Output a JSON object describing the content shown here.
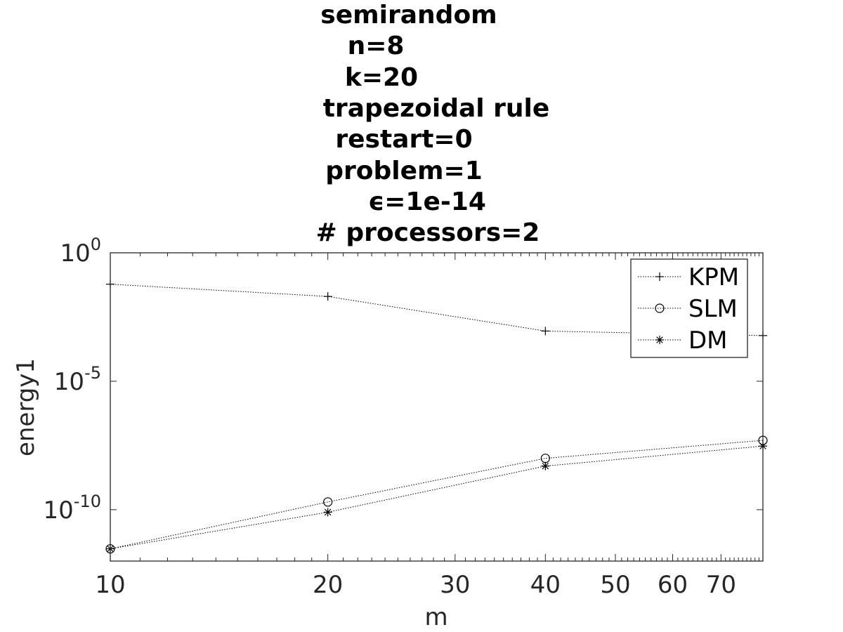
{
  "title_lines": [
    "semirandom",
    "n=8",
    "k=20",
    "trapezoidal rule",
    "restart=0",
    "problem=1",
    "ϵ=1e-14",
    "# processors=2"
  ],
  "chart_data": {
    "type": "line",
    "title": "semirandom n=8 k=20 trapezoidal rule restart=0 problem=1 ϵ=1e-14 # processors=2",
    "xlabel": "m",
    "ylabel": "energy1",
    "xscale": "log",
    "yscale": "log",
    "xlim": [
      10,
      80
    ],
    "ylim": [
      1e-12,
      1
    ],
    "x": [
      10,
      20,
      40,
      80
    ],
    "xticks": [
      10,
      20,
      30,
      40,
      50,
      60,
      70
    ],
    "xtick_labels": [
      "10",
      "20",
      "30",
      "40",
      "50",
      "60",
      "70"
    ],
    "yticks": [
      {
        "value": 1,
        "base": "10",
        "exp": "0"
      },
      {
        "value": 1e-05,
        "base": "10",
        "exp": "-5"
      },
      {
        "value": 1e-10,
        "base": "10",
        "exp": "-10"
      }
    ],
    "grid": false,
    "legend_position": "top-right",
    "series": [
      {
        "name": "KPM",
        "marker": "plus",
        "values": [
          0.06,
          0.02,
          0.0009,
          0.0006
        ]
      },
      {
        "name": "SLM",
        "marker": "circle",
        "values": [
          3e-12,
          2e-10,
          1e-08,
          5e-08
        ]
      },
      {
        "name": "DM",
        "marker": "asterisk",
        "values": [
          3e-12,
          8e-11,
          5e-09,
          3e-08
        ]
      }
    ],
    "colors": {
      "axes": "#262626",
      "series": "#000000"
    }
  }
}
